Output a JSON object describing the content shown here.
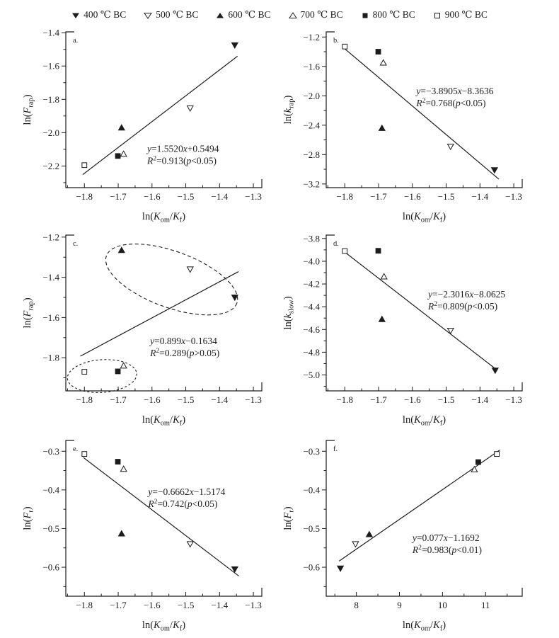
{
  "figure": {
    "background": "#ffffff",
    "ink": "#1c1c1c"
  },
  "legend": {
    "items": [
      {
        "marker": "tri-down-filled",
        "label": "400 ℃ BC"
      },
      {
        "marker": "tri-down-open",
        "label": "500 ℃ BC"
      },
      {
        "marker": "tri-up-filled",
        "label": "600 ℃ BC"
      },
      {
        "marker": "tri-up-open",
        "label": "700 ℃ BC"
      },
      {
        "marker": "square-filled",
        "label": "800 ℃ BC"
      },
      {
        "marker": "square-open",
        "label": "900 ℃ BC"
      }
    ]
  },
  "chart_data": [
    {
      "id": "a",
      "type": "scatter",
      "panel_label": "a.",
      "ylabel_tokens": [
        {
          "t": "n",
          "v": "ln("
        },
        {
          "t": "i",
          "v": "F"
        },
        {
          "t": "sub",
          "v": "rap"
        },
        {
          "t": "n",
          "v": ")"
        }
      ],
      "xlabel_tokens": [
        {
          "t": "n",
          "v": "ln("
        },
        {
          "t": "i",
          "v": "K"
        },
        {
          "t": "sub",
          "v": "om"
        },
        {
          "t": "n",
          "v": "/"
        },
        {
          "t": "i",
          "v": "K"
        },
        {
          "t": "sub",
          "v": "f"
        },
        {
          "t": "n",
          "v": ")"
        }
      ],
      "xlim": [
        -1.855,
        -1.275
      ],
      "ylim": [
        -2.33,
        -1.395
      ],
      "xticks": [
        -1.8,
        -1.7,
        -1.6,
        -1.5,
        -1.4,
        -1.3
      ],
      "xdec": 1,
      "yticks": [
        -2.2,
        -2.0,
        -1.8,
        -1.6,
        -1.4
      ],
      "ydec": 1,
      "points": [
        {
          "series": "400 ℃ BC",
          "marker": "tri-down-filled",
          "x": -1.355,
          "y": -1.475
        },
        {
          "series": "500 ℃ BC",
          "marker": "tri-down-open",
          "x": -1.487,
          "y": -1.853
        },
        {
          "series": "600 ℃ BC",
          "marker": "tri-up-filled",
          "x": -1.69,
          "y": -1.97
        },
        {
          "series": "700 ℃ BC",
          "marker": "tri-up-open",
          "x": -1.684,
          "y": -2.128
        },
        {
          "series": "800 ℃ BC",
          "marker": "square-filled",
          "x": -1.701,
          "y": -2.14
        },
        {
          "series": "900 ℃ BC",
          "marker": "square-open",
          "x": -1.8,
          "y": -2.195
        }
      ],
      "fit": {
        "slope": 1.552,
        "intercept": 0.5494,
        "x_range": [
          -1.805,
          -1.347
        ],
        "r2": 0.913,
        "p": "p<0.05"
      },
      "eq_tokens": [
        {
          "t": "i",
          "v": "y"
        },
        {
          "t": "n",
          "v": "=1.5520"
        },
        {
          "t": "i",
          "v": "x"
        },
        {
          "t": "n",
          "v": "+0.5494"
        }
      ],
      "r2_tokens": [
        {
          "t": "i",
          "v": "R"
        },
        {
          "t": "sup",
          "v": "2"
        },
        {
          "t": "n",
          "v": "=0.913("
        },
        {
          "t": "i",
          "v": "p"
        },
        {
          "t": "n",
          "v": "<0.05)"
        }
      ],
      "eq_pos": [
        0.415,
        0.77
      ]
    },
    {
      "id": "b",
      "type": "scatter",
      "panel_label": "b.",
      "ylabel_tokens": [
        {
          "t": "n",
          "v": "ln("
        },
        {
          "t": "i",
          "v": "k"
        },
        {
          "t": "sub",
          "v": "rap"
        },
        {
          "t": "n",
          "v": ")"
        }
      ],
      "xlabel_tokens": [
        {
          "t": "n",
          "v": "ln("
        },
        {
          "t": "i",
          "v": "K"
        },
        {
          "t": "sub",
          "v": "om"
        },
        {
          "t": "n",
          "v": "/"
        },
        {
          "t": "i",
          "v": "K"
        },
        {
          "t": "sub",
          "v": "f"
        },
        {
          "t": "n",
          "v": ")"
        }
      ],
      "xlim": [
        -1.855,
        -1.275
      ],
      "ylim": [
        -3.25,
        -1.13
      ],
      "xticks": [
        -1.8,
        -1.7,
        -1.6,
        -1.5,
        -1.4,
        -1.3
      ],
      "xdec": 1,
      "yticks": [
        -3.2,
        -2.8,
        -2.4,
        -2.0,
        -1.6,
        -1.2
      ],
      "ydec": 1,
      "points": [
        {
          "series": "400 ℃ BC",
          "marker": "tri-down-filled",
          "x": -1.357,
          "y": -3.01
        },
        {
          "series": "500 ℃ BC",
          "marker": "tri-down-open",
          "x": -1.487,
          "y": -2.69
        },
        {
          "series": "600 ℃ BC",
          "marker": "tri-up-filled",
          "x": -1.69,
          "y": -2.44
        },
        {
          "series": "700 ℃ BC",
          "marker": "tri-up-open",
          "x": -1.686,
          "y": -1.55
        },
        {
          "series": "800 ℃ BC",
          "marker": "square-filled",
          "x": -1.701,
          "y": -1.4
        },
        {
          "series": "900 ℃ BC",
          "marker": "square-open",
          "x": -1.8,
          "y": -1.33
        }
      ],
      "fit": {
        "slope": -3.8905,
        "intercept": -8.3636,
        "x_range": [
          -1.8,
          -1.344
        ],
        "r2": 0.768,
        "p": "p<0.05"
      },
      "eq_tokens": [
        {
          "t": "i",
          "v": "y"
        },
        {
          "t": "n",
          "v": "=−3.8905"
        },
        {
          "t": "i",
          "v": "x"
        },
        {
          "t": "n",
          "v": "−8.3636"
        }
      ],
      "r2_tokens": [
        {
          "t": "i",
          "v": "R"
        },
        {
          "t": "sup",
          "v": "2"
        },
        {
          "t": "n",
          "v": "=0.768("
        },
        {
          "t": "i",
          "v": "p"
        },
        {
          "t": "n",
          "v": "<0.05)"
        }
      ],
      "eq_pos": [
        0.46,
        0.4
      ]
    },
    {
      "id": "c",
      "type": "scatter",
      "panel_label": "c.",
      "ylabel_tokens": [
        {
          "t": "n",
          "v": "ln("
        },
        {
          "t": "i",
          "v": "F"
        },
        {
          "t": "sub",
          "v": "rap"
        },
        {
          "t": "n",
          "v": ")"
        }
      ],
      "xlabel_tokens": [
        {
          "t": "n",
          "v": "ln("
        },
        {
          "t": "i",
          "v": "K"
        },
        {
          "t": "sub",
          "v": "om"
        },
        {
          "t": "n",
          "v": "/"
        },
        {
          "t": "i",
          "v": "K"
        },
        {
          "t": "sub",
          "v": "f"
        },
        {
          "t": "n",
          "v": ")"
        }
      ],
      "xlim": [
        -1.855,
        -1.275
      ],
      "ylim": [
        -1.965,
        -1.19
      ],
      "xticks": [
        -1.8,
        -1.7,
        -1.6,
        -1.5,
        -1.4,
        -1.3
      ],
      "xdec": 1,
      "yticks": [
        -1.8,
        -1.6,
        -1.4,
        -1.2
      ],
      "ydec": 1,
      "points": [
        {
          "series": "400 ℃ BC",
          "marker": "tri-down-filled",
          "x": -1.355,
          "y": -1.5
        },
        {
          "series": "500 ℃ BC",
          "marker": "tri-down-open",
          "x": -1.487,
          "y": -1.36
        },
        {
          "series": "600 ℃ BC",
          "marker": "tri-up-filled",
          "x": -1.69,
          "y": -1.265
        },
        {
          "series": "700 ℃ BC",
          "marker": "tri-up-open",
          "x": -1.684,
          "y": -1.84
        },
        {
          "series": "800 ℃ BC",
          "marker": "square-filled",
          "x": -1.701,
          "y": -1.868
        },
        {
          "series": "900 ℃ BC",
          "marker": "square-open",
          "x": -1.8,
          "y": -1.87
        }
      ],
      "fit": {
        "slope": 0.899,
        "intercept": -0.1634,
        "x_range": [
          -1.812,
          -1.344
        ],
        "r2": 0.289,
        "p": "p>0.05"
      },
      "eq_tokens": [
        {
          "t": "i",
          "v": "y"
        },
        {
          "t": "n",
          "v": "=0.899"
        },
        {
          "t": "i",
          "v": "x"
        },
        {
          "t": "n",
          "v": "−0.1634"
        }
      ],
      "r2_tokens": [
        {
          "t": "i",
          "v": "R"
        },
        {
          "t": "sup",
          "v": "2"
        },
        {
          "t": "n",
          "v": "=0.289("
        },
        {
          "t": "i",
          "v": "p"
        },
        {
          "t": "n",
          "v": ">0.05)"
        }
      ],
      "eq_pos": [
        0.43,
        0.7
      ],
      "ellipses": [
        {
          "cx": 0.54,
          "cy": 0.285,
          "rx": 0.354,
          "ry": 0.18,
          "rot": 20,
          "dash": "5,3.5"
        },
        {
          "cx": 0.185,
          "cy": 0.905,
          "rx": 0.177,
          "ry": 0.105,
          "rot": -4,
          "dash": "3,3"
        }
      ]
    },
    {
      "id": "d",
      "type": "scatter",
      "panel_label": "d.",
      "ylabel_tokens": [
        {
          "t": "n",
          "v": "ln("
        },
        {
          "t": "i",
          "v": "k"
        },
        {
          "t": "sub",
          "v": "slow"
        },
        {
          "t": "n",
          "v": ")"
        }
      ],
      "xlabel_tokens": [
        {
          "t": "n",
          "v": "ln("
        },
        {
          "t": "i",
          "v": "K"
        },
        {
          "t": "sub",
          "v": "om"
        },
        {
          "t": "n",
          "v": "/"
        },
        {
          "t": "i",
          "v": "K"
        },
        {
          "t": "sub",
          "v": "f"
        },
        {
          "t": "n",
          "v": ")"
        }
      ],
      "xlim": [
        -1.855,
        -1.275
      ],
      "ylim": [
        -5.14,
        -3.77
      ],
      "xticks": [
        -1.8,
        -1.7,
        -1.6,
        -1.5,
        -1.4,
        -1.3
      ],
      "xdec": 1,
      "yticks": [
        -5.0,
        -4.8,
        -4.6,
        -4.4,
        -4.2,
        -4.0,
        -3.8
      ],
      "ydec": 1,
      "points": [
        {
          "series": "400 ℃ BC",
          "marker": "tri-down-filled",
          "x": -1.355,
          "y": -4.96
        },
        {
          "series": "500 ℃ BC",
          "marker": "tri-down-open",
          "x": -1.487,
          "y": -4.61
        },
        {
          "series": "600 ℃ BC",
          "marker": "tri-up-filled",
          "x": -1.69,
          "y": -4.51
        },
        {
          "series": "700 ℃ BC",
          "marker": "tri-up-open",
          "x": -1.684,
          "y": -4.135
        },
        {
          "series": "800 ℃ BC",
          "marker": "square-filled",
          "x": -1.701,
          "y": -3.908
        },
        {
          "series": "900 ℃ BC",
          "marker": "square-open",
          "x": -1.8,
          "y": -3.91
        }
      ],
      "fit": {
        "slope": -2.3016,
        "intercept": -8.0625,
        "x_range": [
          -1.8,
          -1.358
        ],
        "r2": 0.809,
        "p": "p<0.05"
      },
      "eq_tokens": [
        {
          "t": "i",
          "v": "y"
        },
        {
          "t": "n",
          "v": "=−2.3016"
        },
        {
          "t": "i",
          "v": "x"
        },
        {
          "t": "n",
          "v": "−8.0625"
        }
      ],
      "r2_tokens": [
        {
          "t": "i",
          "v": "R"
        },
        {
          "t": "sup",
          "v": "2"
        },
        {
          "t": "n",
          "v": "=0.809("
        },
        {
          "t": "i",
          "v": "p"
        },
        {
          "t": "n",
          "v": "<0.05)"
        }
      ],
      "eq_pos": [
        0.52,
        0.4
      ]
    },
    {
      "id": "e",
      "type": "scatter",
      "panel_label": "e.",
      "ylabel_tokens": [
        {
          "t": "n",
          "v": "ln("
        },
        {
          "t": "i",
          "v": "F"
        },
        {
          "t": "sub",
          "v": "r"
        },
        {
          "t": "n",
          "v": ")"
        }
      ],
      "xlabel_tokens": [
        {
          "t": "n",
          "v": "ln("
        },
        {
          "t": "i",
          "v": "K"
        },
        {
          "t": "sub",
          "v": "om"
        },
        {
          "t": "n",
          "v": "/"
        },
        {
          "t": "i",
          "v": "K"
        },
        {
          "t": "sub",
          "v": "f"
        },
        {
          "t": "n",
          "v": ")"
        }
      ],
      "xlim": [
        -1.855,
        -1.275
      ],
      "ylim": [
        -0.675,
        -0.272
      ],
      "xticks": [
        -1.8,
        -1.7,
        -1.6,
        -1.5,
        -1.4,
        -1.3
      ],
      "xdec": 1,
      "yticks": [
        -0.6,
        -0.5,
        -0.4,
        -0.3
      ],
      "ydec": 1,
      "points": [
        {
          "series": "400 ℃ BC",
          "marker": "tri-down-filled",
          "x": -1.355,
          "y": -0.605
        },
        {
          "series": "500 ℃ BC",
          "marker": "tri-down-open",
          "x": -1.487,
          "y": -0.54
        },
        {
          "series": "600 ℃ BC",
          "marker": "tri-up-filled",
          "x": -1.69,
          "y": -0.513
        },
        {
          "series": "700 ℃ BC",
          "marker": "tri-up-open",
          "x": -1.684,
          "y": -0.346
        },
        {
          "series": "800 ℃ BC",
          "marker": "square-filled",
          "x": -1.701,
          "y": -0.327
        },
        {
          "series": "900 ℃ BC",
          "marker": "square-open",
          "x": -1.8,
          "y": -0.307
        }
      ],
      "fit": {
        "slope": -0.6662,
        "intercept": -1.5174,
        "x_range": [
          -1.803,
          -1.343
        ],
        "r2": 0.742,
        "p": "p<0.05"
      },
      "eq_tokens": [
        {
          "t": "i",
          "v": "y"
        },
        {
          "t": "n",
          "v": "=−0.6662"
        },
        {
          "t": "i",
          "v": "x"
        },
        {
          "t": "n",
          "v": "−1.5174"
        }
      ],
      "r2_tokens": [
        {
          "t": "i",
          "v": "R"
        },
        {
          "t": "sup",
          "v": "2"
        },
        {
          "t": "n",
          "v": "=0.742("
        },
        {
          "t": "i",
          "v": "p"
        },
        {
          "t": "n",
          "v": "<0.05)"
        }
      ],
      "eq_pos": [
        0.42,
        0.35
      ]
    },
    {
      "id": "f",
      "type": "scatter",
      "panel_label": "f.",
      "ylabel_tokens": [
        {
          "t": "n",
          "v": "ln("
        },
        {
          "t": "i",
          "v": "F"
        },
        {
          "t": "sub",
          "v": "r"
        },
        {
          "t": "n",
          "v": ")"
        }
      ],
      "xlabel_tokens": [
        {
          "t": "n",
          "v": "ln("
        },
        {
          "t": "i",
          "v": "K"
        },
        {
          "t": "sub",
          "v": "om"
        },
        {
          "t": "n",
          "v": "/"
        },
        {
          "t": "i",
          "v": "K"
        },
        {
          "t": "sub",
          "v": "f"
        },
        {
          "t": "n",
          "v": ")"
        }
      ],
      "xlim": [
        7.3,
        11.85
      ],
      "ylim": [
        -0.675,
        -0.272
      ],
      "xticks": [
        8,
        9,
        10,
        11
      ],
      "xdec": 0,
      "yticks": [
        -0.6,
        -0.5,
        -0.4,
        -0.3
      ],
      "ydec": 1,
      "points": [
        {
          "series": "400 ℃ BC",
          "marker": "tri-down-filled",
          "x": 7.63,
          "y": -0.603
        },
        {
          "series": "500 ℃ BC",
          "marker": "tri-down-open",
          "x": 7.98,
          "y": -0.54
        },
        {
          "series": "600 ℃ BC",
          "marker": "tri-up-filled",
          "x": 8.3,
          "y": -0.515
        },
        {
          "series": "700 ℃ BC",
          "marker": "tri-up-open",
          "x": 10.74,
          "y": -0.347
        },
        {
          "series": "800 ℃ BC",
          "marker": "square-filled",
          "x": 10.83,
          "y": -0.328
        },
        {
          "series": "900 ℃ BC",
          "marker": "square-open",
          "x": 11.26,
          "y": -0.307
        }
      ],
      "fit": {
        "slope": 0.077,
        "intercept": -1.1692,
        "x_range": [
          7.6,
          11.33
        ],
        "r2": 0.983,
        "p": "p<0.01"
      },
      "eq_tokens": [
        {
          "t": "i",
          "v": "y"
        },
        {
          "t": "n",
          "v": "=0.077"
        },
        {
          "t": "i",
          "v": "x"
        },
        {
          "t": "n",
          "v": "−1.1692"
        }
      ],
      "r2_tokens": [
        {
          "t": "i",
          "v": "R"
        },
        {
          "t": "sup",
          "v": "2"
        },
        {
          "t": "n",
          "v": "=0.983("
        },
        {
          "t": "i",
          "v": "p"
        },
        {
          "t": "n",
          "v": "<0.01)"
        }
      ],
      "eq_pos": [
        0.44,
        0.645
      ]
    }
  ]
}
